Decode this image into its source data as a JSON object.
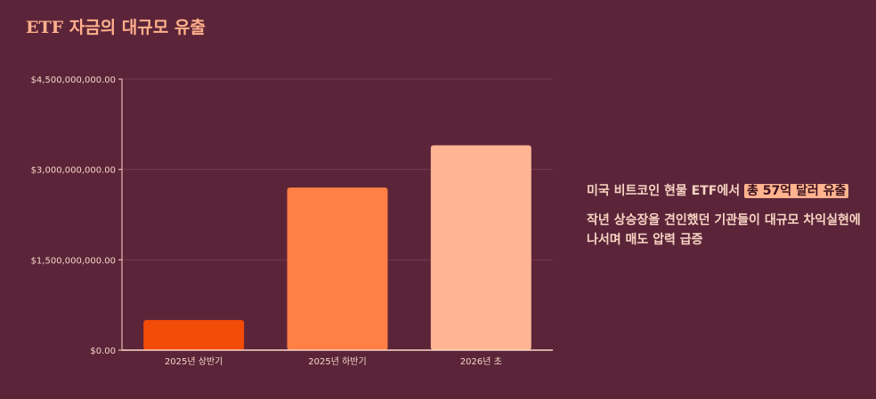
{
  "page": {
    "title": "ETF 자금의 대규모 유출",
    "side_line1_prefix": "미국 비트코인 현물 ETF에서 ",
    "side_line1_highlight": "총 57억 달러 유출",
    "side_line2": "작년 상승장을 견인했던 기관들이 대규모 차익실현에 나서며 매도 압력 급증"
  },
  "colors": {
    "background": "#5b2439",
    "axis": "#ffd8c8",
    "grid": "#7a3a50",
    "tick_text": "#f5d6c8",
    "title": "#ffb08c"
  },
  "chart_data": {
    "type": "bar",
    "categories": [
      "2025년 상반기",
      "2025년 하반기",
      "2026년 초"
    ],
    "values": [
      500000000,
      2700000000,
      3400000000
    ],
    "bar_colors": [
      "#f34b08",
      "#ff7f45",
      "#ffb493"
    ],
    "ylim": [
      0,
      4500000000
    ],
    "yticks": [
      0,
      1500000000,
      3000000000,
      4500000000
    ],
    "ytick_labels": [
      "$0.00",
      "$1,500,000,000.00",
      "$3,000,000,000.00",
      "$4,500,000,000.00"
    ],
    "grid": true,
    "title": "",
    "xlabel": "",
    "ylabel": ""
  }
}
